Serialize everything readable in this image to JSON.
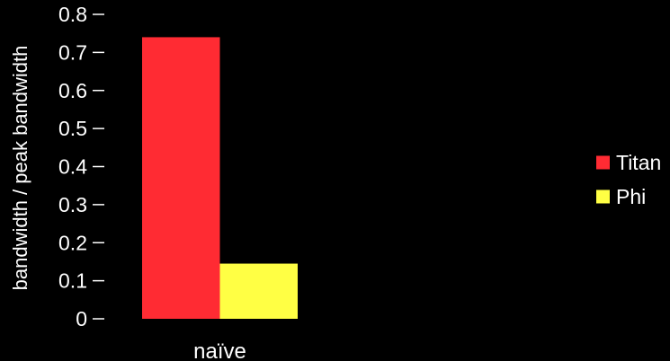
{
  "chart_data": {
    "type": "bar",
    "title": "",
    "xlabel": "",
    "ylabel": "bandwidth / peak bandwidth",
    "categories": [
      "naïve"
    ],
    "series": [
      {
        "name": "Titan",
        "values": [
          0.74
        ],
        "color": "#ff2b33"
      },
      {
        "name": "Phi",
        "values": [
          0.145
        ],
        "color": "#ffff44"
      }
    ],
    "ylim": [
      0,
      0.8
    ],
    "yticks": [
      "0",
      "0.1",
      "0.2",
      "0.3",
      "0.4",
      "0.5",
      "0.6",
      "0.7",
      "0.8"
    ],
    "grid": false,
    "legend_position": "right",
    "background": "#000000",
    "text_color": "#ffffff"
  }
}
